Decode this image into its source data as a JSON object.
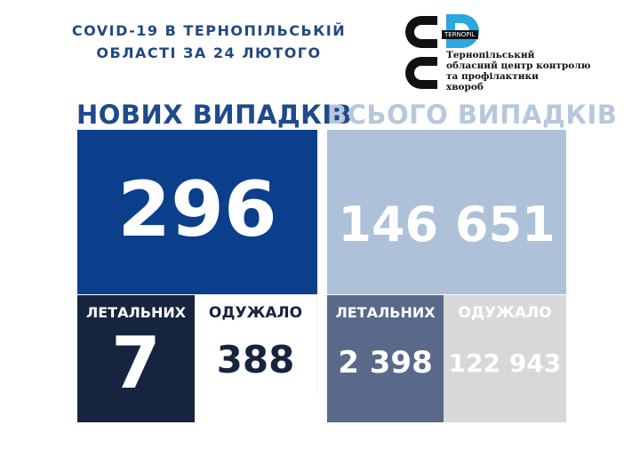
{
  "header": {
    "title_line1": "COVID-19 В ТЕРНОПІЛЬСЬКІЙ",
    "title_line2": "ОБЛАСТІ ЗА 24 ЛЮТОГО"
  },
  "logo": {
    "badge": "TERNOPIL",
    "text": [
      "Тернопільський",
      "обласний центр контролю",
      "та профілактики",
      "хвороб"
    ],
    "colors": {
      "c": "#111111",
      "d": "#2aa8e0"
    }
  },
  "new_cases": {
    "heading": "НОВИХ ВИПАДКІВ",
    "value": "296",
    "deaths_label": "ЛЕТАЛЬНИХ",
    "deaths": "7",
    "recovered_label": "ОДУЖАЛО",
    "recovered": "388"
  },
  "total_cases": {
    "heading": "ВСЬОГО ВИПАДКІВ",
    "value": "146 651",
    "deaths_label": "ЛЕТАЛЬНИХ",
    "deaths": "2 398",
    "recovered_label": "ОДУЖАЛО",
    "recovered": "122 943"
  },
  "colors": {
    "new_blue": "#0b3f8c",
    "total_light": "#adc1d9",
    "deaths_dark": "#17243f",
    "deaths_slate": "#58698a",
    "recovered_gray": "#d8d8d8"
  }
}
